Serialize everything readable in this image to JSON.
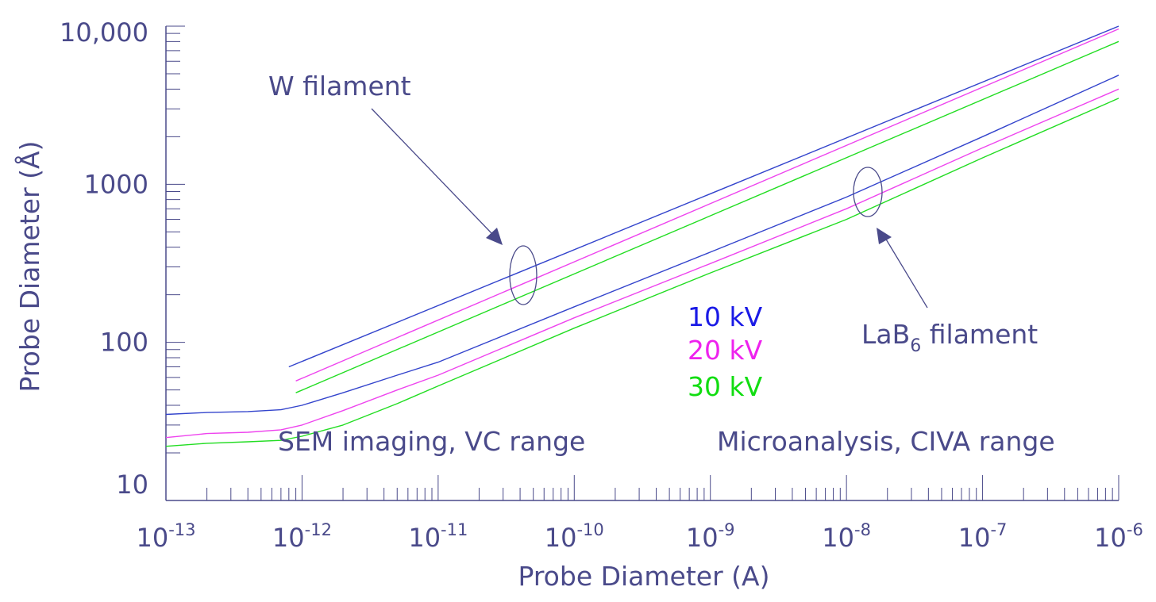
{
  "chart_data": {
    "type": "line",
    "xlabel": "Probe Diameter (A)",
    "ylabel": "Probe Diameter (Å)",
    "x_scale": "log",
    "y_scale": "log",
    "xlim": [
      1e-13,
      1e-06
    ],
    "ylim": [
      10,
      10000
    ],
    "x_ticks": [
      {
        "base": "10",
        "exp": "-13"
      },
      {
        "base": "10",
        "exp": "-12"
      },
      {
        "base": "10",
        "exp": "-11"
      },
      {
        "base": "10",
        "exp": "-10"
      },
      {
        "base": "10",
        "exp": "-9"
      },
      {
        "base": "10",
        "exp": "-8"
      },
      {
        "base": "10",
        "exp": "-7"
      },
      {
        "base": "10",
        "exp": "-6"
      }
    ],
    "y_ticks": [
      "10",
      "100",
      "1000",
      "10,000"
    ],
    "grid": false,
    "colors": {
      "axis": "#4a4a8a",
      "10kV": "#3344cc",
      "20kV": "#ee44ee",
      "30kV": "#22dd22"
    },
    "legend": [
      {
        "label": "10 kV",
        "color": "#1a1ae6"
      },
      {
        "label": "20 kV",
        "color": "#ee22ee"
      },
      {
        "label": "30 kV",
        "color": "#11dd11"
      }
    ],
    "annotations": {
      "w_filament": "W filament",
      "lab6_main": "LaB",
      "lab6_sub": "6",
      "lab6_rest": " filament",
      "sem_range": "SEM imaging, VC range",
      "micro_range": "Microanalysis, CIVA range"
    },
    "series": [
      {
        "group": "W",
        "kv": "10kV",
        "x": [
          8e-13,
          1e-06
        ],
        "y": [
          70,
          11000
        ]
      },
      {
        "group": "W",
        "kv": "20kV",
        "x": [
          9e-13,
          1e-06
        ],
        "y": [
          57,
          9600
        ]
      },
      {
        "group": "W",
        "kv": "30kV",
        "x": [
          9e-13,
          1e-06
        ],
        "y": [
          48,
          8000
        ]
      },
      {
        "group": "LaB6",
        "kv": "10kV",
        "x": [
          1e-13,
          2e-13,
          4e-13,
          7e-13,
          1e-12,
          2e-12,
          5e-12,
          1e-11,
          1e-10,
          1e-09,
          1e-08,
          1e-07,
          1e-06
        ],
        "y": [
          35,
          36,
          36.5,
          37.5,
          40,
          48,
          62,
          75,
          168,
          372,
          830,
          2000,
          4900
        ]
      },
      {
        "group": "LaB6",
        "kv": "20kV",
        "x": [
          1e-13,
          2e-13,
          4e-13,
          7e-13,
          1e-12,
          2e-12,
          5e-12,
          1e-11,
          1e-10,
          1e-09,
          1e-08,
          1e-07,
          1e-06
        ],
        "y": [
          25,
          26.5,
          27,
          28,
          30,
          37,
          50,
          62,
          143,
          315,
          700,
          1700,
          4000
        ]
      },
      {
        "group": "LaB6",
        "kv": "30kV",
        "x": [
          1e-13,
          2e-13,
          4e-13,
          7e-13,
          1e-12,
          2e-12,
          5e-12,
          1e-11,
          1e-10,
          1e-09,
          1e-08,
          1e-07,
          1e-06
        ],
        "y": [
          22,
          23,
          23.5,
          24,
          25.5,
          30,
          41,
          53,
          123,
          275,
          600,
          1470,
          3500
        ]
      }
    ]
  }
}
